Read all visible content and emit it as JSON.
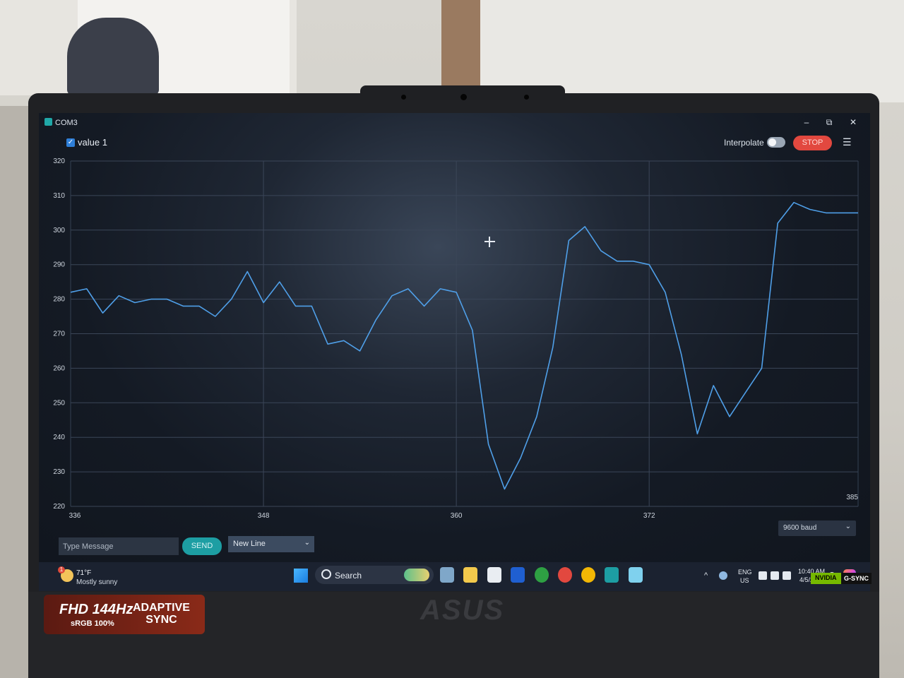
{
  "window": {
    "title": "COM3"
  },
  "series": {
    "name": "value 1",
    "checked": true,
    "color": "#4f9fe8"
  },
  "toolbar": {
    "interpolate_label": "Interpolate",
    "interpolate_on": false,
    "stop_label": "STOP"
  },
  "chart_data": {
    "type": "line",
    "title": "",
    "xlabel": "",
    "ylabel": "",
    "xlim": [
      336,
      385
    ],
    "ylim": [
      220,
      320
    ],
    "y_ticks": [
      320,
      310,
      300,
      290,
      280,
      270,
      260,
      250,
      240,
      230,
      220
    ],
    "x_ticks": [
      336,
      348,
      360,
      372,
      385
    ],
    "grid": true,
    "legend": "top-left",
    "series": [
      {
        "name": "value 1",
        "x": [
          336,
          337,
          338,
          339,
          340,
          341,
          342,
          343,
          344,
          345,
          346,
          347,
          348,
          349,
          350,
          351,
          352,
          353,
          354,
          355,
          356,
          357,
          358,
          359,
          360,
          361,
          362,
          363,
          364,
          365,
          366,
          367,
          368,
          369,
          370,
          371,
          372,
          373,
          374,
          375,
          376,
          377,
          378,
          379,
          380,
          381,
          382,
          383,
          384,
          385
        ],
        "values": [
          282,
          283,
          276,
          281,
          279,
          280,
          280,
          278,
          278,
          275,
          280,
          288,
          279,
          285,
          278,
          278,
          267,
          268,
          265,
          274,
          281,
          283,
          278,
          283,
          282,
          271,
          238,
          225,
          234,
          246,
          266,
          297,
          301,
          294,
          291,
          291,
          290,
          282,
          264,
          241,
          255,
          246,
          253,
          260,
          302,
          308,
          306,
          305,
          305,
          305
        ]
      }
    ]
  },
  "baud": {
    "value": "9600 baud"
  },
  "message": {
    "placeholder": "Type Message",
    "send_label": "SEND",
    "line_ending": "New Line"
  },
  "taskbar": {
    "weather_temp": "71°F",
    "weather_desc": "Mostly sunny",
    "weather_badge": "1",
    "search_label": "Search",
    "lang_line1": "ENG",
    "lang_line2": "US",
    "time": "10:40 AM",
    "date": "4/5/2024"
  },
  "hardware": {
    "sticker_fhd": "FHD 144Hz",
    "sticker_srgb": "sRGB 100%",
    "sticker_adaptive_1": "ADAPTIVE",
    "sticker_adaptive_2": "SYNC",
    "brand": "ASUS",
    "gsync_left": "NVIDIA",
    "gsync_right": "G-SYNC"
  }
}
